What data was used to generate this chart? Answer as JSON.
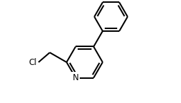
{
  "background": "#ffffff",
  "bond_color": "#000000",
  "bond_width": 1.5,
  "text_color": "#000000",
  "font_size": 8.5,
  "N_label": "N",
  "Cl_label": "Cl",
  "figsize": [
    2.61,
    1.49
  ],
  "dpi": 100
}
